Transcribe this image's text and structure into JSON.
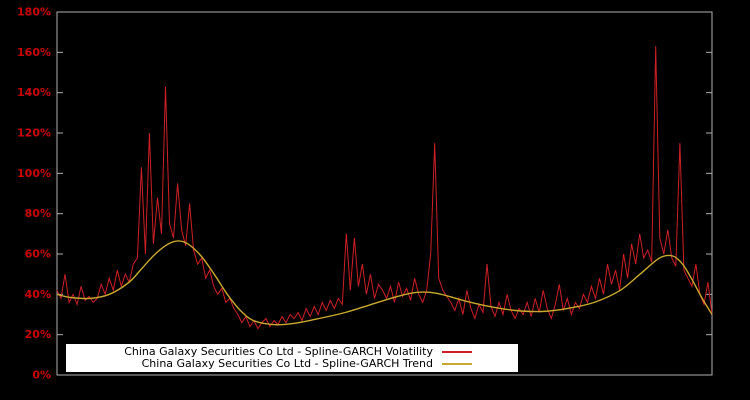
{
  "window": {
    "background": "#000000"
  },
  "chart_data": {
    "type": "line",
    "title": "",
    "xlabel": "",
    "ylabel": "",
    "ylim": [
      0,
      180
    ],
    "ytick_values": [
      0,
      20,
      40,
      60,
      80,
      100,
      120,
      140,
      160,
      180
    ],
    "ytick_labels": [
      "0%",
      "20%",
      "40%",
      "60%",
      "80%",
      "100%",
      "120%",
      "140%",
      "160%",
      "180%"
    ],
    "xtick_labels": [],
    "grid": false,
    "legend_position": "bottom-center",
    "axis_color": "#b0b0b0",
    "tick_label_color": "#cc0000",
    "series": [
      {
        "name": "China Galaxy Securities Co Ltd - Spline-GARCH Volatility",
        "color": "#cc2026",
        "style": "spiky-line",
        "values": [
          42,
          38,
          50,
          36,
          40,
          35,
          44,
          37,
          39,
          36,
          38,
          45,
          40,
          48,
          42,
          52,
          44,
          50,
          46,
          55,
          58,
          103,
          60,
          120,
          65,
          88,
          70,
          143,
          75,
          68,
          95,
          72,
          64,
          85,
          62,
          55,
          58,
          48,
          52,
          44,
          40,
          43,
          36,
          38,
          33,
          30,
          26,
          29,
          24,
          27,
          23,
          26,
          28,
          24,
          27,
          25,
          29,
          26,
          30,
          28,
          31,
          27,
          33,
          29,
          34,
          30,
          36,
          32,
          37,
          33,
          38,
          35,
          70,
          42,
          68,
          44,
          55,
          40,
          50,
          38,
          45,
          42,
          38,
          44,
          36,
          46,
          39,
          43,
          37,
          48,
          40,
          36,
          42,
          60,
          115,
          48,
          42,
          39,
          36,
          32,
          38,
          30,
          42,
          33,
          28,
          35,
          31,
          55,
          34,
          29,
          36,
          30,
          40,
          32,
          28,
          33,
          30,
          36,
          29,
          38,
          31,
          42,
          33,
          28,
          35,
          45,
          32,
          38,
          30,
          36,
          33,
          40,
          36,
          44,
          38,
          48,
          40,
          55,
          45,
          52,
          42,
          60,
          48,
          65,
          55,
          70,
          58,
          62,
          56,
          163,
          68,
          60,
          72,
          58,
          54,
          115,
          52,
          48,
          44,
          55,
          40,
          35,
          46,
          30
        ]
      },
      {
        "name": "China Galaxy Securities Co Ltd - Spline-GARCH Trend",
        "color": "#c8a82e",
        "style": "smooth-line",
        "points": [
          [
            0.0,
            40
          ],
          [
            0.02,
            38.5
          ],
          [
            0.05,
            38
          ],
          [
            0.08,
            40
          ],
          [
            0.11,
            46
          ],
          [
            0.13,
            53
          ],
          [
            0.15,
            60
          ],
          [
            0.17,
            65
          ],
          [
            0.185,
            66.5
          ],
          [
            0.2,
            65
          ],
          [
            0.22,
            59
          ],
          [
            0.24,
            50
          ],
          [
            0.26,
            40
          ],
          [
            0.28,
            32
          ],
          [
            0.3,
            27
          ],
          [
            0.33,
            25
          ],
          [
            0.36,
            25.5
          ],
          [
            0.4,
            28
          ],
          [
            0.44,
            31
          ],
          [
            0.48,
            35
          ],
          [
            0.52,
            39
          ],
          [
            0.55,
            41
          ],
          [
            0.58,
            40.5
          ],
          [
            0.62,
            37
          ],
          [
            0.66,
            34
          ],
          [
            0.7,
            32
          ],
          [
            0.74,
            31.5
          ],
          [
            0.78,
            33
          ],
          [
            0.82,
            36
          ],
          [
            0.86,
            42
          ],
          [
            0.89,
            50
          ],
          [
            0.92,
            58
          ],
          [
            0.94,
            59
          ],
          [
            0.955,
            55
          ],
          [
            0.97,
            47
          ],
          [
            0.985,
            38
          ],
          [
            1.0,
            30
          ]
        ]
      }
    ]
  },
  "legend": {
    "background": "#ffffff",
    "text_color": "#000000"
  }
}
